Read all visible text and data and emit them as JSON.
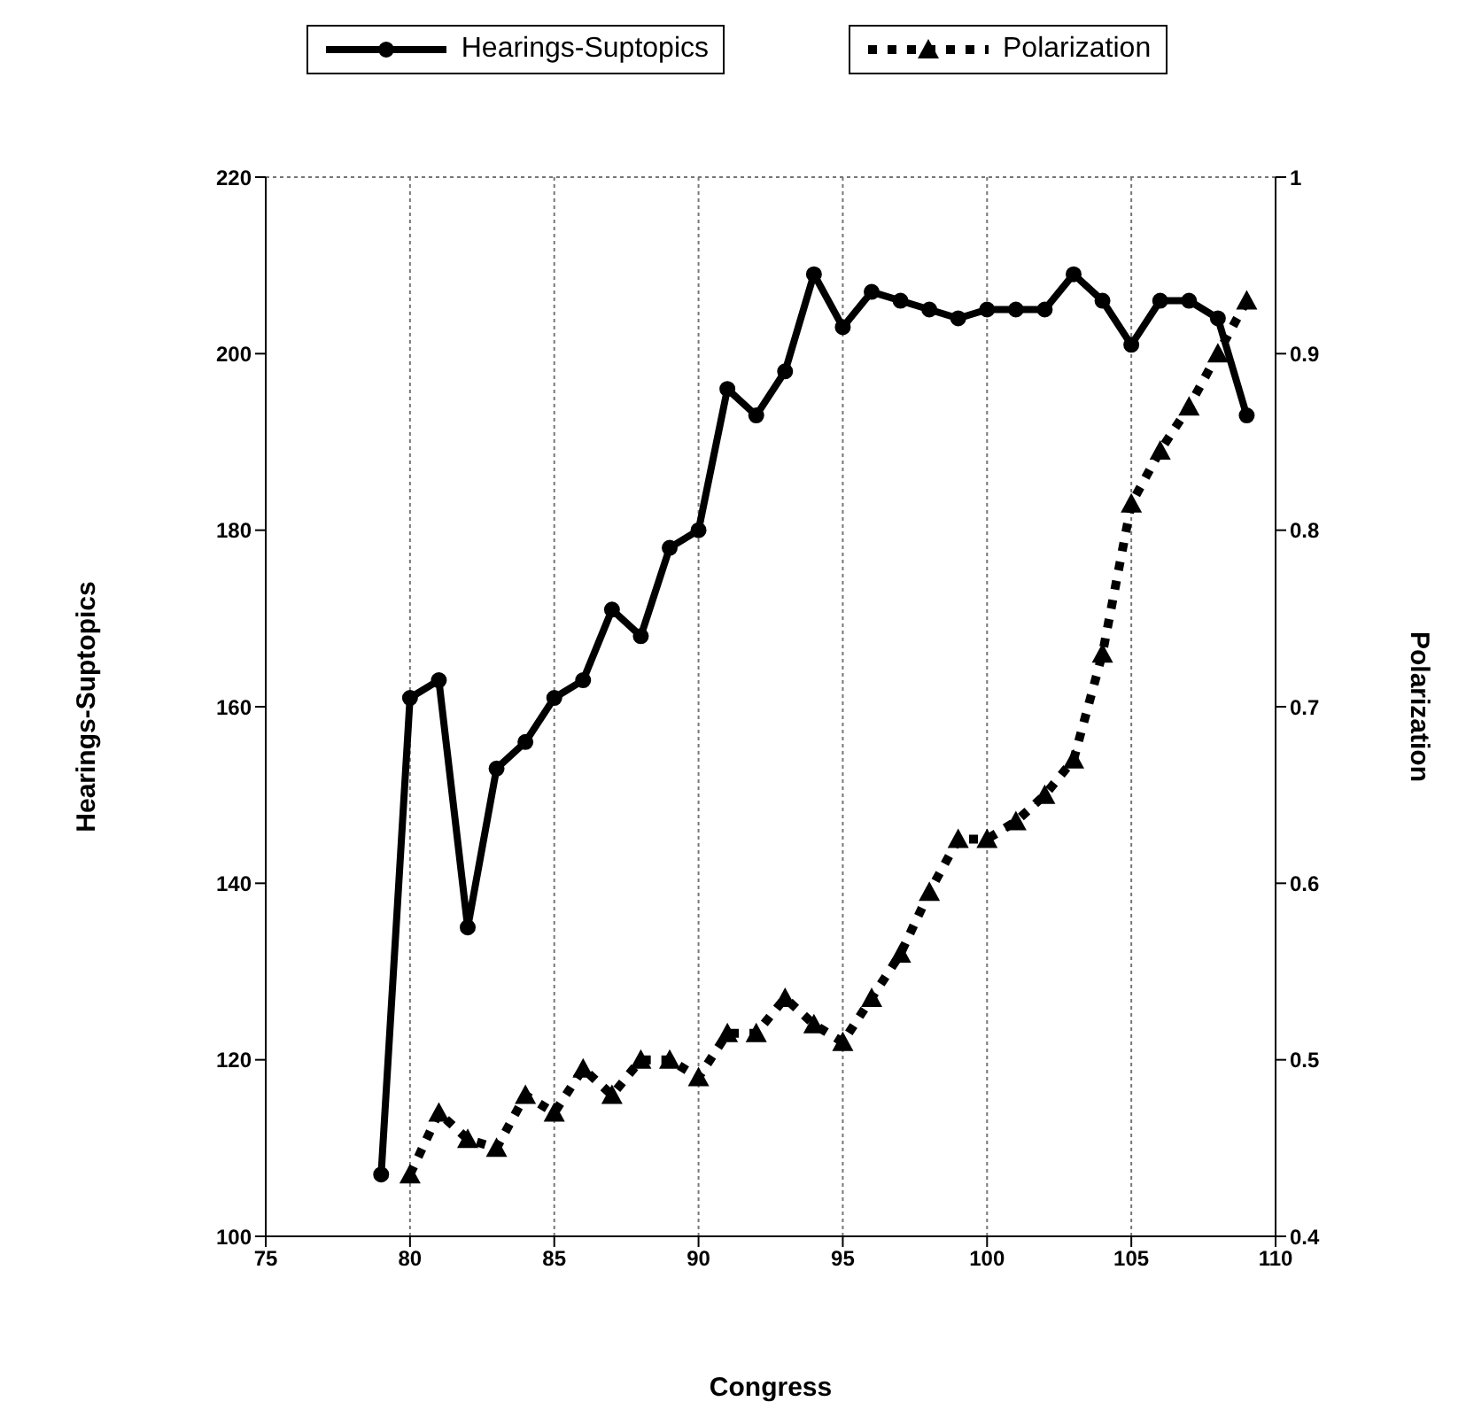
{
  "chart_data": {
    "type": "line",
    "xlabel": "Congress",
    "ylabel": "Hearings-Suptopics",
    "y2label": "Polarization",
    "x": [
      79,
      80,
      81,
      82,
      83,
      84,
      85,
      86,
      87,
      88,
      89,
      90,
      91,
      92,
      93,
      94,
      95,
      96,
      97,
      98,
      99,
      100,
      101,
      102,
      103,
      104,
      105,
      106,
      107,
      108,
      109
    ],
    "series": [
      {
        "name": "Hearings-Suptopics",
        "color": "#000000",
        "marker": "circle",
        "line_style": "solid",
        "values": [
          107,
          161,
          163,
          135,
          153,
          156,
          161,
          163,
          171,
          168,
          178,
          180,
          196,
          193,
          198,
          209,
          203,
          207,
          206,
          205,
          204,
          205,
          205,
          205,
          209,
          206,
          201,
          206,
          206,
          204,
          193
        ]
      },
      {
        "name": "Polarization",
        "color": "#000000",
        "marker": "triangle",
        "line_style": "dotted",
        "axis": "y2",
        "x": [
          80,
          81,
          82,
          83,
          84,
          85,
          86,
          87,
          88,
          89,
          90,
          91,
          92,
          93,
          94,
          95,
          96,
          97,
          98,
          99,
          100,
          101,
          102,
          103,
          104,
          105,
          106,
          107,
          108,
          109
        ],
        "values": [
          0.435,
          0.47,
          0.455,
          0.45,
          0.48,
          0.47,
          0.495,
          0.48,
          0.5,
          0.5,
          0.49,
          0.515,
          0.515,
          0.535,
          0.52,
          0.51,
          0.535,
          0.56,
          0.595,
          0.625,
          0.625,
          0.635,
          0.65,
          0.67,
          0.73,
          0.815,
          0.845,
          0.87,
          0.9,
          0.93
        ]
      }
    ],
    "xlim": [
      75,
      110
    ],
    "xticks": [
      75,
      80,
      85,
      90,
      95,
      100,
      105,
      110
    ],
    "ylim": [
      100,
      220
    ],
    "yticks": [
      100,
      120,
      140,
      160,
      180,
      200,
      220
    ],
    "y2lim": [
      0.4,
      1
    ],
    "y2ticks": [
      0.4,
      0.5,
      0.6,
      0.7,
      0.8,
      0.9,
      1
    ],
    "grid": true,
    "legend": "top"
  }
}
